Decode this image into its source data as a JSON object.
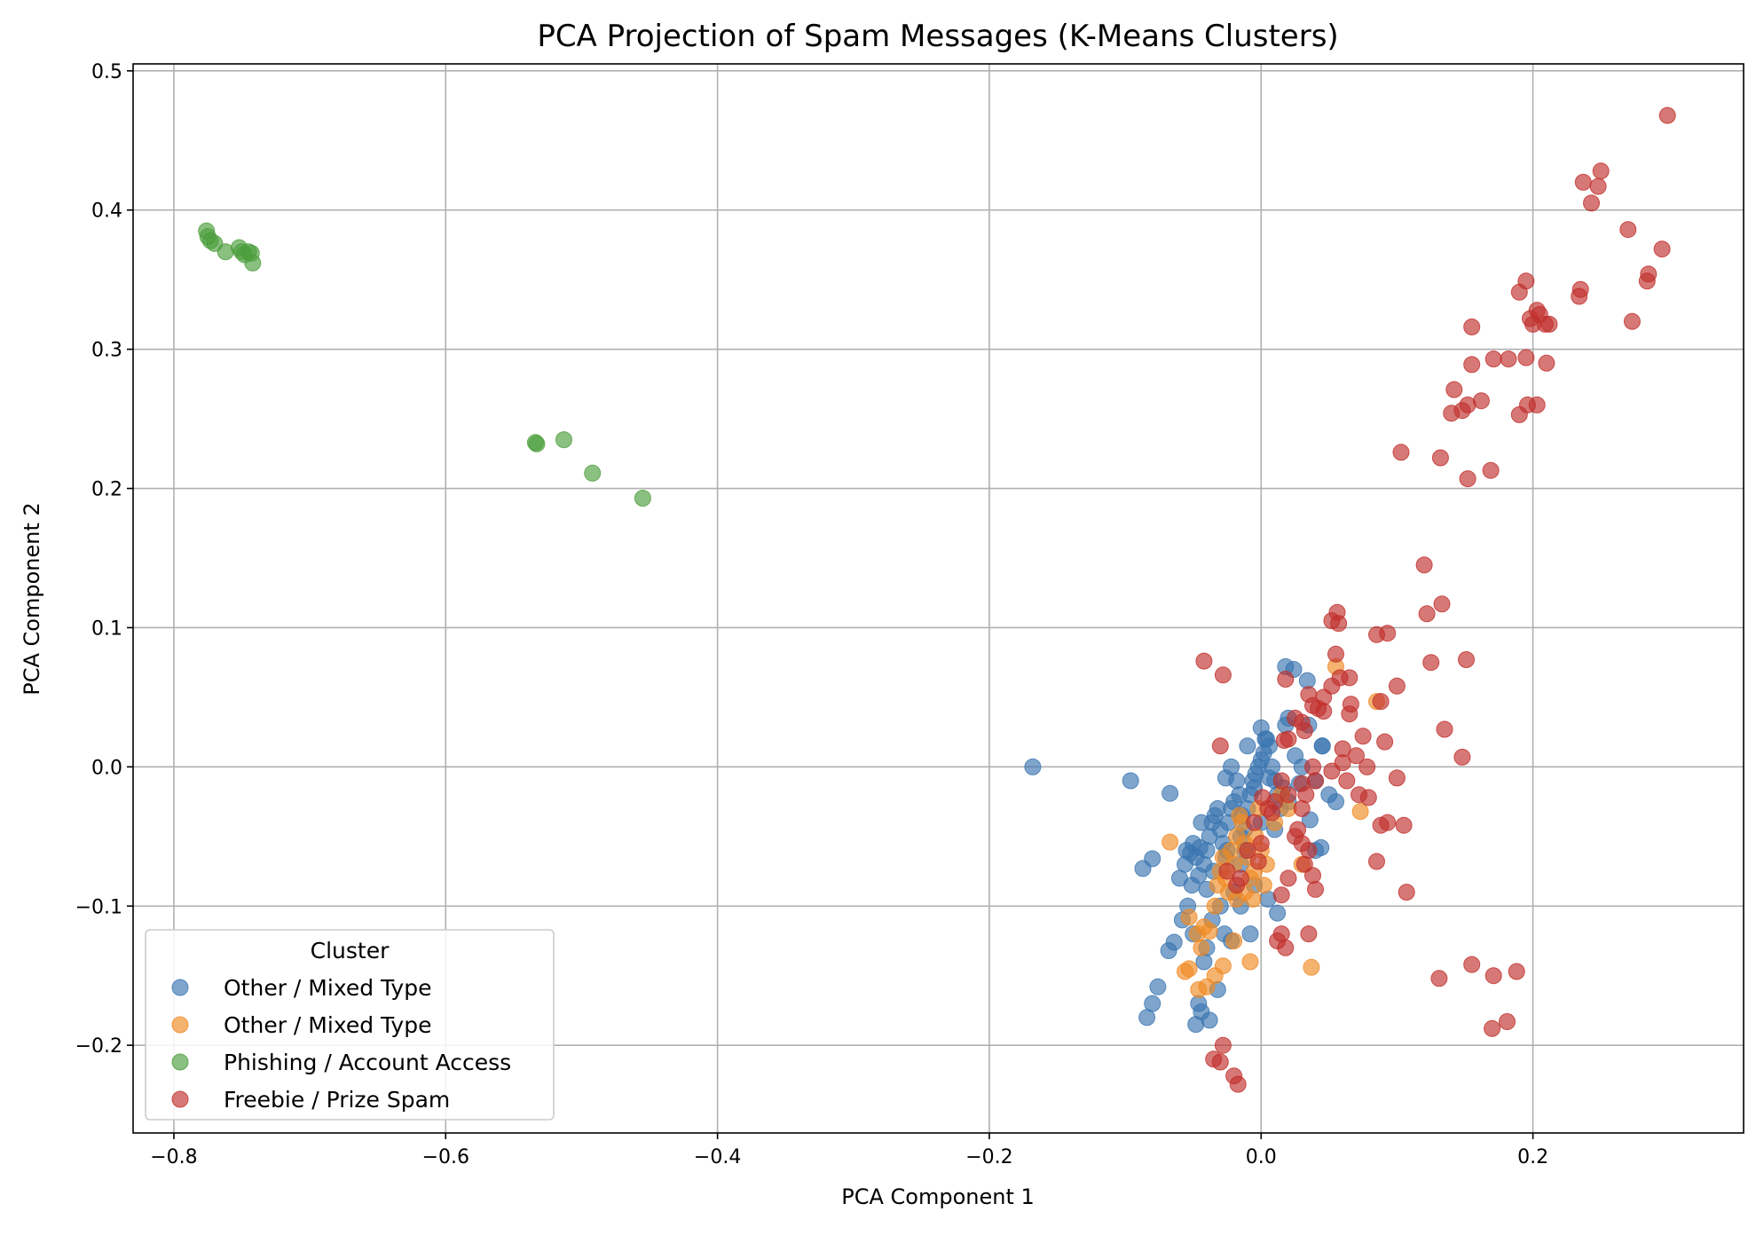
{
  "chart_data": {
    "type": "scatter",
    "title": "PCA Projection of Spam Messages (K-Means Clusters)",
    "xlabel": "PCA Component 1",
    "ylabel": "PCA Component 2",
    "xlim": [
      -0.83,
      0.355
    ],
    "ylim": [
      -0.263,
      0.505
    ],
    "xticks": [
      -0.8,
      -0.6,
      -0.4,
      -0.2,
      0.0,
      0.2
    ],
    "xtick_labels": [
      "−0.8",
      "−0.6",
      "−0.4",
      "−0.2",
      "0.0",
      "0.2"
    ],
    "yticks": [
      -0.2,
      -0.1,
      0.0,
      0.1,
      0.2,
      0.3,
      0.4,
      0.5
    ],
    "ytick_labels": [
      "−0.2",
      "−0.1",
      "0.0",
      "0.1",
      "0.2",
      "0.3",
      "0.4",
      "0.5"
    ],
    "grid": true,
    "legend_title": "Cluster",
    "legend_position": "lower-left",
    "series": [
      {
        "name": "Other / Mixed Type",
        "color": "#3a75b0",
        "points": [
          [
            -0.168,
            0.0
          ],
          [
            -0.096,
            -0.01
          ],
          [
            -0.067,
            -0.019
          ],
          [
            -0.087,
            -0.073
          ],
          [
            -0.08,
            -0.066
          ],
          [
            -0.06,
            -0.08
          ],
          [
            -0.051,
            -0.085
          ],
          [
            -0.055,
            -0.06
          ],
          [
            -0.05,
            -0.055
          ],
          [
            -0.048,
            -0.065
          ],
          [
            -0.045,
            -0.058
          ],
          [
            -0.042,
            -0.07
          ],
          [
            -0.04,
            -0.06
          ],
          [
            -0.038,
            -0.05
          ],
          [
            -0.036,
            -0.04
          ],
          [
            -0.034,
            -0.035
          ],
          [
            -0.032,
            -0.03
          ],
          [
            -0.03,
            -0.045
          ],
          [
            -0.028,
            -0.055
          ],
          [
            -0.026,
            -0.065
          ],
          [
            -0.024,
            -0.04
          ],
          [
            -0.022,
            -0.03
          ],
          [
            -0.02,
            -0.025
          ],
          [
            -0.018,
            -0.01
          ],
          [
            -0.016,
            -0.02
          ],
          [
            -0.014,
            -0.035
          ],
          [
            -0.012,
            -0.045
          ],
          [
            -0.01,
            -0.03
          ],
          [
            -0.008,
            -0.02
          ],
          [
            -0.006,
            -0.01
          ],
          [
            -0.004,
            -0.005
          ],
          [
            -0.002,
            0.0
          ],
          [
            0.0,
            0.005
          ],
          [
            0.002,
            0.01
          ],
          [
            0.004,
            0.02
          ],
          [
            0.006,
            0.015
          ],
          [
            0.008,
            0.0
          ],
          [
            0.01,
            -0.01
          ],
          [
            0.012,
            -0.02
          ],
          [
            0.014,
            -0.03
          ],
          [
            0.016,
            -0.015
          ],
          [
            0.018,
            0.03
          ],
          [
            0.02,
            0.035
          ],
          [
            0.025,
            0.008
          ],
          [
            0.03,
            0.0
          ],
          [
            0.035,
            0.03
          ],
          [
            0.04,
            -0.01
          ],
          [
            0.045,
            0.015
          ],
          [
            0.05,
            -0.02
          ],
          [
            -0.005,
            -0.015
          ],
          [
            0.0,
            0.028
          ],
          [
            0.018,
            0.072
          ],
          [
            0.024,
            0.07
          ],
          [
            0.034,
            0.062
          ],
          [
            0.045,
            0.015
          ],
          [
            0.055,
            -0.025
          ],
          [
            0.04,
            -0.06
          ],
          [
            -0.005,
            -0.085
          ],
          [
            -0.015,
            -0.1
          ],
          [
            0.012,
            -0.105
          ],
          [
            -0.022,
            -0.125
          ],
          [
            -0.04,
            -0.13
          ],
          [
            -0.054,
            -0.1
          ],
          [
            -0.058,
            -0.11
          ],
          [
            -0.068,
            -0.132
          ],
          [
            -0.064,
            -0.126
          ],
          [
            -0.076,
            -0.158
          ],
          [
            -0.08,
            -0.17
          ],
          [
            -0.084,
            -0.18
          ],
          [
            -0.048,
            -0.185
          ],
          [
            -0.046,
            -0.17
          ],
          [
            -0.044,
            -0.176
          ],
          [
            -0.038,
            -0.182
          ],
          [
            -0.032,
            -0.16
          ],
          [
            -0.027,
            -0.12
          ],
          [
            -0.008,
            -0.12
          ],
          [
            0.005,
            -0.095
          ],
          [
            -0.015,
            -0.07
          ],
          [
            -0.02,
            -0.09
          ],
          [
            -0.03,
            -0.1
          ],
          [
            -0.036,
            -0.11
          ],
          [
            -0.042,
            -0.14
          ],
          [
            -0.05,
            -0.12
          ],
          [
            -0.035,
            -0.075
          ],
          [
            -0.025,
            -0.06
          ],
          [
            -0.015,
            -0.05
          ],
          [
            0.0,
            -0.04
          ],
          [
            0.01,
            -0.045
          ],
          [
            0.02,
            -0.025
          ],
          [
            -0.01,
            0.015
          ],
          [
            0.003,
            0.02
          ],
          [
            -0.022,
            0.0
          ],
          [
            -0.026,
            -0.008
          ],
          [
            -0.044,
            -0.04
          ],
          [
            -0.056,
            -0.07
          ],
          [
            -0.052,
            -0.062
          ],
          [
            -0.046,
            -0.078
          ],
          [
            -0.04,
            -0.088
          ],
          [
            0.028,
            -0.012
          ],
          [
            0.036,
            -0.038
          ],
          [
            0.044,
            -0.058
          ],
          [
            0.006,
            -0.008
          ],
          [
            -0.012,
            -0.06
          ]
        ]
      },
      {
        "name": "Other / Mixed Type",
        "color": "#f08a24",
        "points": [
          [
            -0.067,
            -0.054
          ],
          [
            -0.053,
            -0.108
          ],
          [
            -0.047,
            -0.12
          ],
          [
            -0.042,
            -0.115
          ],
          [
            -0.038,
            -0.118
          ],
          [
            -0.034,
            -0.1
          ],
          [
            -0.03,
            -0.075
          ],
          [
            -0.028,
            -0.065
          ],
          [
            -0.026,
            -0.08
          ],
          [
            -0.024,
            -0.09
          ],
          [
            -0.022,
            -0.06
          ],
          [
            -0.02,
            -0.07
          ],
          [
            -0.018,
            -0.05
          ],
          [
            -0.016,
            -0.035
          ],
          [
            -0.014,
            -0.04
          ],
          [
            -0.012,
            -0.055
          ],
          [
            -0.01,
            -0.065
          ],
          [
            -0.008,
            -0.08
          ],
          [
            -0.006,
            -0.095
          ],
          [
            -0.004,
            -0.05
          ],
          [
            -0.002,
            -0.03
          ],
          [
            0.0,
            -0.06
          ],
          [
            0.004,
            -0.07
          ],
          [
            0.01,
            -0.04
          ],
          [
            0.015,
            -0.02
          ],
          [
            0.02,
            -0.03
          ],
          [
            0.03,
            -0.07
          ],
          [
            0.055,
            0.072
          ],
          [
            0.085,
            0.047
          ],
          [
            0.073,
            -0.032
          ],
          [
            0.037,
            -0.144
          ],
          [
            -0.008,
            -0.14
          ],
          [
            -0.028,
            -0.143
          ],
          [
            -0.04,
            -0.158
          ],
          [
            -0.053,
            -0.145
          ],
          [
            -0.056,
            -0.147
          ],
          [
            -0.046,
            -0.16
          ],
          [
            -0.034,
            -0.15
          ],
          [
            -0.02,
            -0.125
          ],
          [
            -0.044,
            -0.13
          ],
          [
            -0.032,
            -0.085
          ],
          [
            -0.018,
            -0.095
          ],
          [
            -0.012,
            -0.09
          ],
          [
            -0.005,
            -0.075
          ],
          [
            0.002,
            -0.085
          ]
        ]
      },
      {
        "name": "Phishing / Account Access",
        "color": "#4c9e3c",
        "points": [
          [
            -0.776,
            0.385
          ],
          [
            -0.775,
            0.381
          ],
          [
            -0.773,
            0.378
          ],
          [
            -0.77,
            0.376
          ],
          [
            -0.762,
            0.37
          ],
          [
            -0.752,
            0.373
          ],
          [
            -0.75,
            0.37
          ],
          [
            -0.748,
            0.368
          ],
          [
            -0.745,
            0.37
          ],
          [
            -0.743,
            0.369
          ],
          [
            -0.742,
            0.362
          ],
          [
            -0.534,
            0.233
          ],
          [
            -0.533,
            0.232
          ],
          [
            -0.513,
            0.235
          ],
          [
            -0.492,
            0.211
          ],
          [
            -0.455,
            0.193
          ]
        ]
      },
      {
        "name": "Freebie / Prize Spam",
        "color": "#c0302c",
        "points": [
          [
            0.299,
            0.468
          ],
          [
            0.25,
            0.428
          ],
          [
            0.237,
            0.42
          ],
          [
            0.248,
            0.417
          ],
          [
            0.243,
            0.405
          ],
          [
            0.27,
            0.386
          ],
          [
            0.295,
            0.372
          ],
          [
            0.285,
            0.354
          ],
          [
            0.284,
            0.349
          ],
          [
            0.235,
            0.343
          ],
          [
            0.234,
            0.338
          ],
          [
            0.195,
            0.349
          ],
          [
            0.19,
            0.341
          ],
          [
            0.198,
            0.322
          ],
          [
            0.203,
            0.328
          ],
          [
            0.205,
            0.325
          ],
          [
            0.209,
            0.318
          ],
          [
            0.212,
            0.318
          ],
          [
            0.2,
            0.318
          ],
          [
            0.155,
            0.316
          ],
          [
            0.155,
            0.289
          ],
          [
            0.273,
            0.32
          ],
          [
            0.21,
            0.29
          ],
          [
            0.195,
            0.294
          ],
          [
            0.182,
            0.293
          ],
          [
            0.171,
            0.293
          ],
          [
            0.162,
            0.263
          ],
          [
            0.152,
            0.26
          ],
          [
            0.148,
            0.256
          ],
          [
            0.14,
            0.254
          ],
          [
            0.142,
            0.271
          ],
          [
            0.196,
            0.26
          ],
          [
            0.203,
            0.26
          ],
          [
            0.19,
            0.253
          ],
          [
            0.103,
            0.226
          ],
          [
            0.132,
            0.222
          ],
          [
            0.152,
            0.207
          ],
          [
            0.169,
            0.213
          ],
          [
            0.12,
            0.145
          ],
          [
            0.122,
            0.11
          ],
          [
            0.133,
            0.117
          ],
          [
            0.056,
            0.111
          ],
          [
            0.052,
            0.105
          ],
          [
            0.057,
            0.103
          ],
          [
            0.085,
            0.095
          ],
          [
            0.093,
            0.096
          ],
          [
            0.125,
            0.075
          ],
          [
            0.151,
            0.077
          ],
          [
            0.1,
            0.058
          ],
          [
            0.055,
            0.081
          ],
          [
            0.058,
            0.064
          ],
          [
            0.065,
            0.064
          ],
          [
            0.052,
            0.058
          ],
          [
            0.046,
            0.05
          ],
          [
            0.035,
            0.052
          ],
          [
            0.038,
            0.044
          ],
          [
            0.042,
            0.042
          ],
          [
            0.046,
            0.04
          ],
          [
            0.066,
            0.045
          ],
          [
            0.065,
            0.038
          ],
          [
            0.075,
            0.022
          ],
          [
            0.088,
            0.047
          ],
          [
            0.091,
            0.018
          ],
          [
            0.135,
            0.027
          ],
          [
            0.148,
            0.007
          ],
          [
            0.03,
            0.032
          ],
          [
            0.025,
            0.035
          ],
          [
            0.032,
            0.026
          ],
          [
            0.02,
            0.02
          ],
          [
            0.06,
            0.013
          ],
          [
            0.07,
            0.008
          ],
          [
            0.06,
            0.003
          ],
          [
            0.052,
            -0.003
          ],
          [
            0.063,
            -0.01
          ],
          [
            0.072,
            -0.02
          ],
          [
            0.079,
            -0.022
          ],
          [
            0.078,
            0.0
          ],
          [
            0.1,
            -0.008
          ],
          [
            0.093,
            -0.04
          ],
          [
            0.088,
            -0.042
          ],
          [
            0.105,
            -0.042
          ],
          [
            0.085,
            -0.068
          ],
          [
            0.107,
            -0.09
          ],
          [
            0.038,
            0.0
          ],
          [
            0.04,
            -0.01
          ],
          [
            0.033,
            -0.02
          ],
          [
            0.03,
            -0.03
          ],
          [
            0.027,
            -0.045
          ],
          [
            0.03,
            -0.055
          ],
          [
            0.035,
            -0.06
          ],
          [
            0.032,
            -0.07
          ],
          [
            0.038,
            -0.078
          ],
          [
            0.04,
            -0.088
          ],
          [
            0.025,
            -0.05
          ],
          [
            0.02,
            -0.02
          ],
          [
            0.015,
            -0.01
          ],
          [
            0.01,
            -0.025
          ],
          [
            0.005,
            -0.03
          ],
          [
            0.0,
            -0.055
          ],
          [
            -0.005,
            -0.04
          ],
          [
            -0.01,
            -0.06
          ],
          [
            -0.015,
            -0.08
          ],
          [
            -0.018,
            -0.085
          ],
          [
            -0.025,
            -0.075
          ],
          [
            -0.03,
            0.015
          ],
          [
            -0.028,
            0.066
          ],
          [
            -0.042,
            0.076
          ],
          [
            0.017,
            0.019
          ],
          [
            0.018,
            0.063
          ],
          [
            0.015,
            -0.092
          ],
          [
            0.012,
            -0.125
          ],
          [
            0.018,
            -0.13
          ],
          [
            0.015,
            -0.12
          ],
          [
            0.035,
            -0.12
          ],
          [
            0.02,
            -0.08
          ],
          [
            -0.028,
            -0.2
          ],
          [
            -0.035,
            -0.21
          ],
          [
            -0.03,
            -0.212
          ],
          [
            -0.02,
            -0.222
          ],
          [
            -0.017,
            -0.228
          ],
          [
            0.131,
            -0.152
          ],
          [
            0.155,
            -0.142
          ],
          [
            0.171,
            -0.15
          ],
          [
            0.181,
            -0.183
          ],
          [
            0.17,
            -0.188
          ],
          [
            0.188,
            -0.147
          ],
          [
            0.001,
            -0.022
          ],
          [
            0.008,
            -0.033
          ],
          [
            0.03,
            -0.012
          ],
          [
            -0.002,
            -0.068
          ]
        ]
      }
    ]
  }
}
